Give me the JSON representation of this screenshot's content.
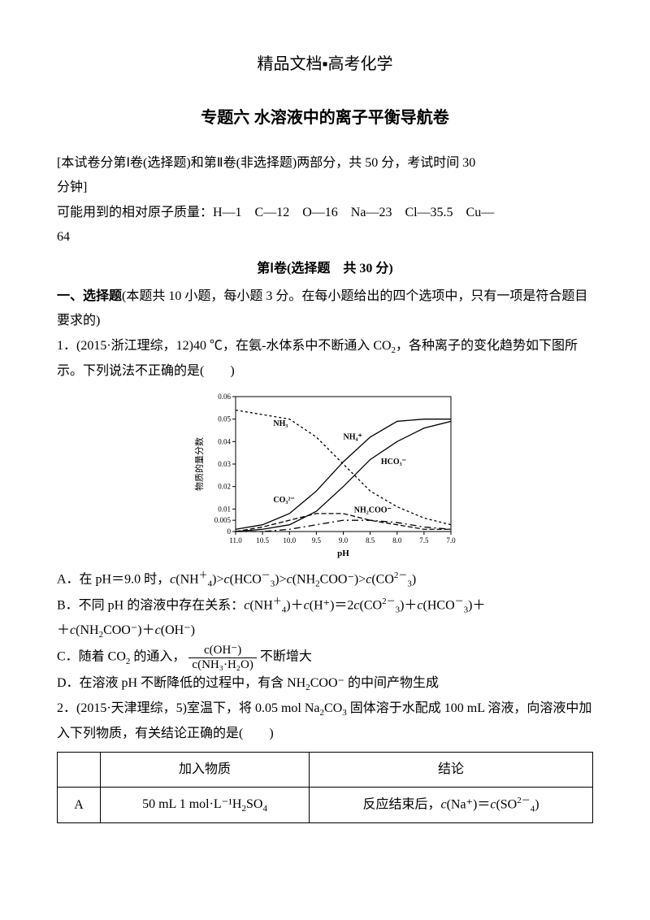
{
  "header": "精品文档▪高考化学",
  "title": "专题六  水溶液中的离子平衡导航卷",
  "instructions": {
    "line1_a": "[本试卷分第Ⅰ卷(选择题)和第Ⅱ卷(非选择题)两部分，共 50 分，考试时间 30",
    "line1_b": "分钟]",
    "line2_a": "可能用到的相对原子质量：H—1　C—12　O—16　Na—23　Cl—35.5　Cu—",
    "line2_b": "64"
  },
  "part1_head": "第Ⅰ卷(选择题　共 30 分)",
  "part1_desc_a": "一、选择题",
  "part1_desc_b": "(本题共 10 小题，每小题 3 分。在每小题给出的四个选项中，只有一项是符合题目要求的)",
  "q1": {
    "stem_a": "1．(2015·浙江理综，12)40 ℃，在氨-水体系中不断通入 CO",
    "stem_b": "，各种离子的变化趋势如下图所示。下列说法不正确的是(　　)",
    "optA_a": "A．在 pH＝9.0 时，",
    "optA_b": "(NH",
    "optA_c": ")>",
    "optA_d": "(HCO",
    "optA_e": ")>",
    "optA_f": "(NH",
    "optA_g": "COO⁻)>",
    "optA_h": "(CO",
    "optA_i": ")",
    "optB_a": "B．不同 pH 的溶液中存在关系：",
    "optB_b": "(NH",
    "optB_c": ")＋",
    "optB_d": "(H⁺)＝2",
    "optB_e": "(CO",
    "optB_f": ")＋",
    "optB_g": "(HCO",
    "optB_h": ")＋",
    "optB_i": "(NH",
    "optB_j": "COO⁻)＋",
    "optB_k": "(OH⁻)",
    "optC_a": "C．随着 CO",
    "optC_b": " 的通入，",
    "optC_frac_num": "c(OH⁻)",
    "optC_frac_den": "c(NH₃·H₂O)",
    "optC_c": "不断增大",
    "optD_a": "D．在溶液 pH 不断降低的过程中，有含 NH",
    "optD_b": "COO⁻ 的中间产物生成"
  },
  "q2": {
    "stem_a": "2．(2015·天津理综，5)室温下，将 0.05 mol Na",
    "stem_b": "CO",
    "stem_c": " 固体溶于水配成 100 mL 溶液，向溶液中加入下列物质，有关结论正确的是(　　)"
  },
  "table": {
    "h1": "",
    "h2": "加入物质",
    "h3": "结论",
    "rA_lbl": "A",
    "rA_sub_a": "50 mL 1 mol·L⁻¹H",
    "rA_sub_b": "SO",
    "rA_con_a": "反应结束后，",
    "rA_con_b": "(Na⁺)＝",
    "rA_con_c": "(SO",
    "rA_con_d": ")"
  },
  "chart": {
    "ylabel": "物质的量分数",
    "xlabel": "pH",
    "xticks": [
      "11.0",
      "10.5",
      "10.0",
      "9.5",
      "9.0",
      "8.5",
      "8.0",
      "7.5",
      "7.0"
    ],
    "yticks": [
      "0",
      "0.005",
      "0.01",
      "0.02",
      "0.03",
      "0.04",
      "0.05",
      "0.06"
    ],
    "ytick_pos": [
      0,
      0.005,
      0.01,
      0.02,
      0.03,
      0.04,
      0.05,
      0.06
    ],
    "labels": {
      "nh3": "NH₃",
      "nh4": "NH₄⁺",
      "hco3": "HCO₃⁻",
      "co3": "CO₃²⁻",
      "nh2coo": "NH₂COO⁻"
    },
    "colors": {
      "axis": "#000000",
      "bg": "#ffffff",
      "text": "#000000"
    },
    "series": {
      "nh3": {
        "dash": "3,3",
        "pts": [
          [
            11.0,
            0.054
          ],
          [
            10.5,
            0.052
          ],
          [
            10.0,
            0.05
          ],
          [
            9.5,
            0.042
          ],
          [
            9.0,
            0.03
          ],
          [
            8.5,
            0.018
          ],
          [
            8.0,
            0.011
          ],
          [
            7.5,
            0.006
          ],
          [
            7.0,
            0.003
          ]
        ]
      },
      "nh4": {
        "dash": "",
        "pts": [
          [
            11.0,
            0.001
          ],
          [
            10.5,
            0.003
          ],
          [
            10.0,
            0.008
          ],
          [
            9.5,
            0.018
          ],
          [
            9.0,
            0.031
          ],
          [
            8.5,
            0.042
          ],
          [
            8.0,
            0.049
          ],
          [
            7.5,
            0.05
          ],
          [
            7.0,
            0.05
          ]
        ]
      },
      "hco3": {
        "dash": "",
        "pts": [
          [
            11.0,
            0.0
          ],
          [
            10.5,
            0.001
          ],
          [
            10.0,
            0.003
          ],
          [
            9.5,
            0.009
          ],
          [
            9.0,
            0.02
          ],
          [
            8.5,
            0.032
          ],
          [
            8.0,
            0.04
          ],
          [
            7.5,
            0.046
          ],
          [
            7.0,
            0.049
          ]
        ]
      },
      "co3": {
        "dash": "6,3",
        "pts": [
          [
            11.0,
            0.0
          ],
          [
            10.5,
            0.002
          ],
          [
            10.0,
            0.005
          ],
          [
            9.5,
            0.008
          ],
          [
            9.0,
            0.008
          ],
          [
            8.5,
            0.005
          ],
          [
            8.0,
            0.003
          ],
          [
            7.5,
            0.001
          ],
          [
            7.0,
            0.001
          ]
        ]
      },
      "nh2coo": {
        "dash": "8,4,2,4",
        "pts": [
          [
            11.0,
            0.0
          ],
          [
            10.5,
            0.0
          ],
          [
            10.0,
            0.001
          ],
          [
            9.5,
            0.003
          ],
          [
            9.0,
            0.005
          ],
          [
            8.5,
            0.005
          ],
          [
            8.0,
            0.004
          ],
          [
            7.5,
            0.002
          ],
          [
            7.0,
            0.001
          ]
        ]
      }
    }
  }
}
